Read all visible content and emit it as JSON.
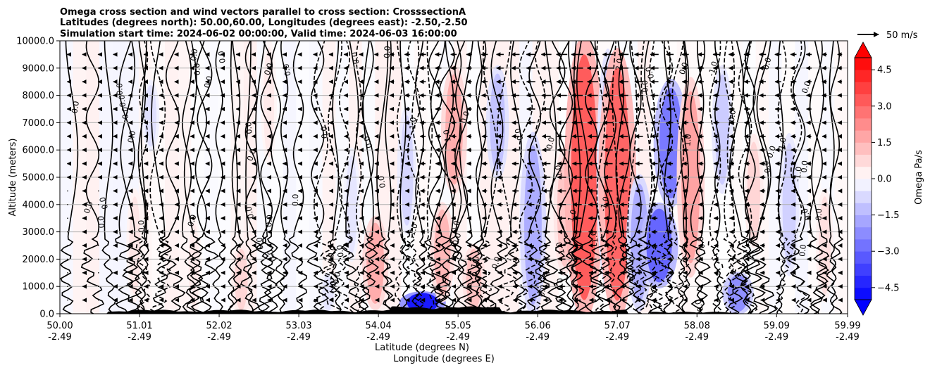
{
  "chart_data": {
    "type": "heatmap",
    "title_lines": [
      "Omega cross section and wind vectors parallel to cross section: CrosssectionA",
      "Latitudes (degrees north): 50.00,60.00, Longitudes (degrees east): -2.50,-2.50",
      "Simulation start time: 2024-06-02 00:00:00, Valid time: 2024-06-03 16:00:00"
    ],
    "ylabel": "Altitude (meters)",
    "xlabel_lines": [
      "Latitude (degrees N)",
      "Longitude (degrees E)"
    ],
    "ylim": [
      0,
      10000
    ],
    "xlim": [
      50.0,
      59.99
    ],
    "y_ticks": [
      {
        "value": 0,
        "label": "0.0"
      },
      {
        "value": 1000,
        "label": "1000.0"
      },
      {
        "value": 2000,
        "label": "2000.0"
      },
      {
        "value": 3000,
        "label": "3000.0"
      },
      {
        "value": 4000,
        "label": "4000.0"
      },
      {
        "value": 5000,
        "label": "5000.0"
      },
      {
        "value": 6000,
        "label": "6000.0"
      },
      {
        "value": 7000,
        "label": "7000.0"
      },
      {
        "value": 8000,
        "label": "8000.0"
      },
      {
        "value": 9000,
        "label": "9000.0"
      },
      {
        "value": 10000,
        "label": "10000.0"
      }
    ],
    "x_ticks": [
      {
        "lat": 50.0,
        "lat_label": "50.00",
        "lon_label": "-2.49"
      },
      {
        "lat": 51.01,
        "lat_label": "51.01",
        "lon_label": "-2.49"
      },
      {
        "lat": 52.02,
        "lat_label": "52.02",
        "lon_label": "-2.49"
      },
      {
        "lat": 53.03,
        "lat_label": "53.03",
        "lon_label": "-2.49"
      },
      {
        "lat": 54.04,
        "lat_label": "54.04",
        "lon_label": "-2.49"
      },
      {
        "lat": 55.05,
        "lat_label": "55.05",
        "lon_label": "-2.49"
      },
      {
        "lat": 56.06,
        "lat_label": "56.06",
        "lon_label": "-2.49"
      },
      {
        "lat": 57.07,
        "lat_label": "57.07",
        "lon_label": "-2.49"
      },
      {
        "lat": 58.08,
        "lat_label": "58.08",
        "lon_label": "-2.49"
      },
      {
        "lat": 59.09,
        "lat_label": "59.09",
        "lon_label": "-2.49"
      },
      {
        "lat": 59.99,
        "lat_label": "59.99",
        "lon_label": "-2.49"
      }
    ],
    "grid": "horizontal",
    "colorbar": {
      "label": "Omega Pa/s",
      "range": [
        -5.0,
        5.0
      ],
      "ticks": [
        {
          "value": 4.5,
          "label": "4.5"
        },
        {
          "value": 3.0,
          "label": "3.0"
        },
        {
          "value": 1.5,
          "label": "1.5"
        },
        {
          "value": 0.0,
          "label": "0.0"
        },
        {
          "value": -1.5,
          "label": "−1.5"
        },
        {
          "value": -3.0,
          "label": "−3.0"
        },
        {
          "value": -4.5,
          "label": "−4.5"
        }
      ],
      "neg_color": "#0000ff",
      "pos_color": "#ff0000",
      "mid_color": "#ffffff"
    },
    "quiver_key": {
      "label": "50 m/s",
      "value": 50
    },
    "omega_features": [
      {
        "lat": 50.95,
        "z0": 500,
        "z1": 4500,
        "value": 0.5
      },
      {
        "lat": 51.15,
        "z0": 6000,
        "z1": 8500,
        "value": -0.6
      },
      {
        "lat": 51.7,
        "z0": 0,
        "z1": 3500,
        "value": 0.4
      },
      {
        "lat": 52.3,
        "z0": 0,
        "z1": 2500,
        "value": 0.8
      },
      {
        "lat": 52.65,
        "z0": 5500,
        "z1": 10000,
        "value": 0.4
      },
      {
        "lat": 53.4,
        "z0": 0,
        "z1": 1500,
        "value": -0.5
      },
      {
        "lat": 53.7,
        "z0": 2000,
        "z1": 6000,
        "value": -0.5
      },
      {
        "lat": 54.0,
        "z0": 200,
        "z1": 3500,
        "value": 1.6
      },
      {
        "lat": 54.4,
        "z0": 3000,
        "z1": 7500,
        "value": -0.8
      },
      {
        "lat": 54.6,
        "z0": 0,
        "z1": 800,
        "value": -4.5
      },
      {
        "lat": 54.85,
        "z0": 500,
        "z1": 4000,
        "value": 1.4
      },
      {
        "lat": 55.0,
        "z0": 4500,
        "z1": 9000,
        "value": 1.6
      },
      {
        "lat": 55.25,
        "z0": 0,
        "z1": 2500,
        "value": 1.2
      },
      {
        "lat": 55.55,
        "z0": 5000,
        "z1": 9000,
        "value": -1.2
      },
      {
        "lat": 56.0,
        "z0": 0,
        "z1": 6500,
        "value": -1.6
      },
      {
        "lat": 56.4,
        "z0": 1500,
        "z1": 6000,
        "value": 1.1
      },
      {
        "lat": 56.65,
        "z0": 0,
        "z1": 10000,
        "value": 3.2
      },
      {
        "lat": 56.95,
        "z0": 1000,
        "z1": 9500,
        "value": -1.2
      },
      {
        "lat": 57.07,
        "z0": 0,
        "z1": 9500,
        "value": 3.0
      },
      {
        "lat": 57.35,
        "z0": 200,
        "z1": 5000,
        "value": -1.6
      },
      {
        "lat": 57.6,
        "z0": 1000,
        "z1": 4000,
        "value": -3.0
      },
      {
        "lat": 57.75,
        "z0": 4000,
        "z1": 8500,
        "value": -2.6
      },
      {
        "lat": 58.0,
        "z0": 1500,
        "z1": 8500,
        "value": 1.8
      },
      {
        "lat": 58.4,
        "z0": 4500,
        "z1": 9000,
        "value": -1.0
      },
      {
        "lat": 58.6,
        "z0": 0,
        "z1": 1500,
        "value": -2.2
      },
      {
        "lat": 58.8,
        "z0": 2500,
        "z1": 6500,
        "value": 0.8
      },
      {
        "lat": 59.25,
        "z0": 1500,
        "z1": 6500,
        "value": -0.9
      },
      {
        "lat": 59.7,
        "z0": 500,
        "z1": 4500,
        "value": 0.6
      }
    ],
    "contour_label_texts": [
      "0.0",
      "1.0",
      "-1.0",
      "2.0",
      "-2.0"
    ],
    "wind_arrow_rows_m": [
      500,
      1000,
      1500,
      2000,
      2500,
      3000,
      3500,
      4000,
      4500,
      5000,
      5500,
      6000,
      6500,
      7000,
      7500,
      8000,
      8500,
      9000,
      9500
    ],
    "wind_column_speeds_ms": [
      2,
      3,
      2,
      3,
      4,
      4,
      5,
      5,
      4,
      5,
      6,
      6,
      5,
      6,
      5,
      6,
      6,
      5,
      7,
      8,
      9,
      10,
      12,
      14,
      14,
      13,
      12,
      14,
      16,
      18,
      20,
      22,
      24,
      26,
      25,
      24,
      22,
      20,
      18,
      16,
      15,
      14,
      14,
      13,
      14,
      15,
      14,
      13,
      12,
      11,
      10
    ]
  }
}
